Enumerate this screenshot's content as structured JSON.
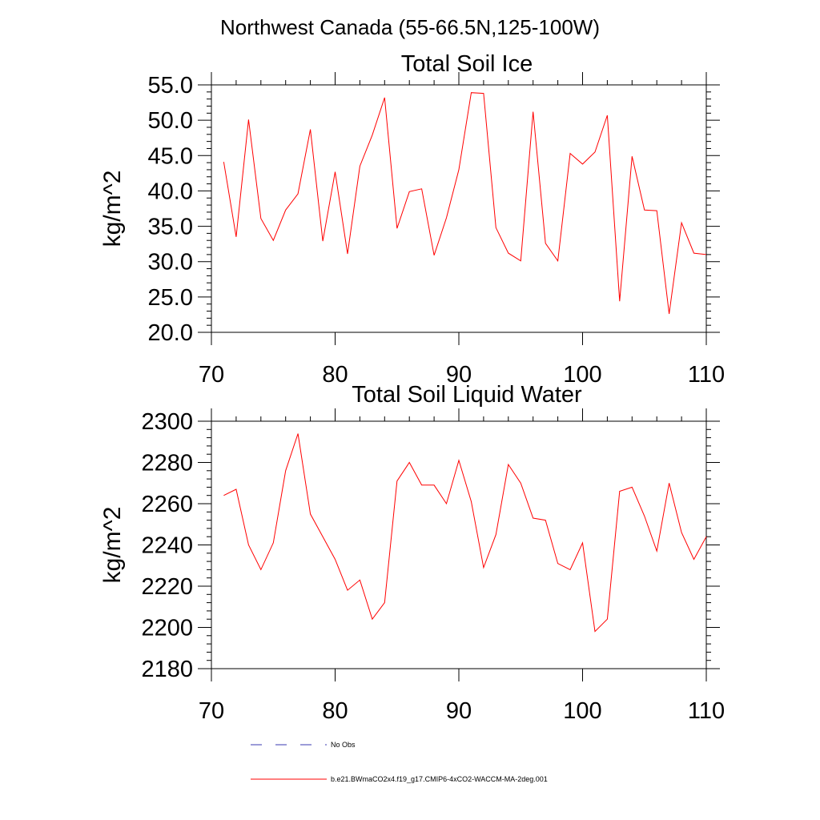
{
  "figure": {
    "title": "Northwest Canada (55-66.5N,125-100W)"
  },
  "colors": {
    "model_line": "#ff0000",
    "obs_line": "#3a3ab0",
    "axes": "#000000"
  },
  "chart_data": [
    {
      "type": "line",
      "title": "Total Soil Ice",
      "xlabel": "",
      "ylabel": "kg/m^2",
      "xlim": [
        70,
        110
      ],
      "ylim": [
        20,
        55
      ],
      "xticks": [
        70,
        80,
        90,
        100,
        110
      ],
      "xtick_labels": [
        "70",
        "80",
        "90",
        "100",
        "110"
      ],
      "yticks": [
        20,
        25,
        30,
        35,
        40,
        45,
        50,
        55
      ],
      "ytick_labels": [
        "20.0",
        "25.0",
        "30.0",
        "35.0",
        "40.0",
        "45.0",
        "50.0",
        "55.0"
      ],
      "y_minor_step": 1,
      "x_minor_step": 2,
      "series": [
        {
          "name": "b.e21.BWmaCO2x4.f19_g17.CMIP6-4xCO2-WACCM-MA-2deg.001",
          "x": [
            71,
            72,
            73,
            74,
            75,
            76,
            77,
            78,
            79,
            80,
            81,
            82,
            83,
            84,
            85,
            86,
            87,
            88,
            89,
            90,
            91,
            92,
            93,
            94,
            95,
            96,
            97,
            98,
            99,
            100,
            101,
            102,
            103,
            104,
            105,
            106,
            107,
            108,
            109,
            110
          ],
          "values": [
            44.1,
            33.5,
            50.1,
            36.1,
            33.0,
            37.3,
            39.6,
            48.7,
            32.9,
            42.7,
            31.1,
            43.5,
            47.9,
            53.2,
            34.7,
            39.9,
            40.3,
            30.9,
            36.2,
            43.0,
            53.9,
            53.8,
            34.8,
            31.2,
            30.1,
            51.2,
            32.6,
            30.1,
            45.3,
            43.8,
            45.5,
            50.7,
            24.4,
            44.9,
            37.3,
            37.2,
            22.6,
            35.5,
            31.2,
            31.0
          ]
        }
      ]
    },
    {
      "type": "line",
      "title": "Total Soil Liquid Water",
      "xlabel": "",
      "ylabel": "kg/m^2",
      "xlim": [
        70,
        110
      ],
      "ylim": [
        2180,
        2300
      ],
      "xticks": [
        70,
        80,
        90,
        100,
        110
      ],
      "xtick_labels": [
        "70",
        "80",
        "90",
        "100",
        "110"
      ],
      "yticks": [
        2180,
        2200,
        2220,
        2240,
        2260,
        2280,
        2300
      ],
      "ytick_labels": [
        "2180",
        "2200",
        "2220",
        "2240",
        "2260",
        "2280",
        "2300"
      ],
      "y_minor_step": 4,
      "x_minor_step": 2,
      "series": [
        {
          "name": "b.e21.BWmaCO2x4.f19_g17.CMIP6-4xCO2-WACCM-MA-2deg.001",
          "x": [
            71,
            72,
            73,
            74,
            75,
            76,
            77,
            78,
            79,
            80,
            81,
            82,
            83,
            84,
            85,
            86,
            87,
            88,
            89,
            90,
            91,
            92,
            93,
            94,
            95,
            96,
            97,
            98,
            99,
            100,
            101,
            102,
            103,
            104,
            105,
            106,
            107,
            108,
            109,
            110
          ],
          "values": [
            2264,
            2267,
            2240,
            2228,
            2241,
            2276,
            2294,
            2255,
            2244,
            2233,
            2218,
            2223,
            2204,
            2212,
            2271,
            2280,
            2269,
            2269,
            2260,
            2281,
            2261,
            2229,
            2245,
            2279,
            2270,
            2253,
            2252,
            2231,
            2228,
            2241,
            2198,
            2204,
            2266,
            2268,
            2254,
            2237,
            2270,
            2246,
            2233,
            2244
          ]
        }
      ]
    }
  ],
  "legend": {
    "entries": [
      {
        "label": "No Obs",
        "style": "dashed"
      },
      {
        "label": "b.e21.BWmaCO2x4.f19_g17.CMIP6-4xCO2-WACCM-MA-2deg.001",
        "style": "solid"
      }
    ]
  }
}
